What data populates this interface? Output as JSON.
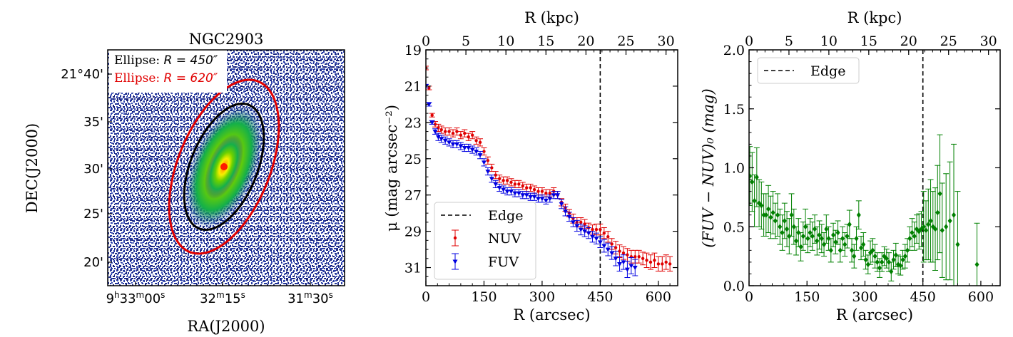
{
  "chart_data": [
    {
      "type": "image",
      "title": "NGC2903",
      "xlabel": "RA(J2000)",
      "ylabel": "DEC(J2000)",
      "xtick_labels": [
        {
          "h": "9",
          "m": "33",
          "s": "00"
        },
        {
          "m": "32",
          "s": "15"
        },
        {
          "m": "31",
          "s": "30"
        }
      ],
      "ytick_labels": [
        "21°40'",
        "35'",
        "30'",
        "25'",
        "20'"
      ],
      "legend": [
        {
          "label": "Ellipse: ",
          "math": "R = 450″",
          "color": "#000000"
        },
        {
          "label": "Ellipse: ",
          "math": "R = 620″",
          "color": "#e00000"
        }
      ],
      "ellipses": [
        {
          "name": "R = 450″",
          "semi_major_arcsec": 450,
          "color": "#000000"
        },
        {
          "name": "R = 620″",
          "semi_major_arcsec": 620,
          "color": "#e00000"
        }
      ],
      "position_angle_deg": 22,
      "inclination_axis_ratio": 0.5
    },
    {
      "type": "errorbar",
      "xlabel": "R (arcsec)",
      "top_xlabel": "R (kpc)",
      "ylabel": "μ (mag arcsec⁻²)",
      "xlim": [
        0,
        650
      ],
      "ylim": [
        32,
        19
      ],
      "xticks": [
        0,
        150,
        300,
        450,
        600
      ],
      "yticks": [
        19,
        21,
        23,
        25,
        27,
        29,
        31
      ],
      "top_xticks_kpc": [
        0,
        5,
        10,
        15,
        20,
        25,
        30
      ],
      "kpc_per_arcsec": 0.0484,
      "edge_arcsec": 450,
      "legend_entries": [
        "Edge",
        "NUV",
        "FUV"
      ],
      "series": [
        {
          "name": "NUV",
          "color": "#e00000",
          "x": [
            0,
            8,
            16,
            24,
            32,
            40,
            50,
            60,
            70,
            80,
            90,
            100,
            110,
            120,
            130,
            140,
            150,
            160,
            170,
            180,
            190,
            200,
            210,
            220,
            230,
            240,
            250,
            260,
            270,
            280,
            290,
            300,
            310,
            320,
            330,
            340,
            350,
            360,
            370,
            380,
            390,
            400,
            410,
            420,
            430,
            440,
            450,
            460,
            470,
            480,
            490,
            500,
            510,
            520,
            530,
            540,
            550,
            560,
            570,
            580,
            590,
            600,
            610,
            620,
            630
          ],
          "y": [
            20.0,
            21.1,
            22.6,
            23.1,
            23.3,
            23.4,
            23.5,
            23.5,
            23.6,
            23.5,
            23.7,
            23.6,
            23.8,
            23.7,
            24.0,
            24.1,
            24.6,
            25.1,
            25.5,
            25.9,
            26.1,
            26.2,
            26.2,
            26.3,
            26.4,
            26.4,
            26.5,
            26.6,
            26.6,
            26.7,
            26.8,
            26.8,
            26.9,
            26.9,
            26.8,
            27.0,
            27.4,
            27.7,
            28.0,
            28.3,
            28.5,
            28.5,
            28.6,
            28.8,
            28.9,
            28.9,
            28.9,
            29.1,
            29.3,
            29.7,
            29.9,
            30.1,
            30.2,
            30.3,
            30.4,
            30.4,
            30.4,
            30.5,
            30.6,
            30.7,
            30.6,
            30.8,
            30.8,
            30.7,
            30.8
          ],
          "yerr": [
            0.1,
            0.1,
            0.1,
            0.15,
            0.2,
            0.2,
            0.2,
            0.2,
            0.2,
            0.2,
            0.2,
            0.2,
            0.2,
            0.2,
            0.2,
            0.2,
            0.2,
            0.2,
            0.2,
            0.2,
            0.2,
            0.2,
            0.2,
            0.2,
            0.2,
            0.2,
            0.2,
            0.2,
            0.2,
            0.2,
            0.2,
            0.2,
            0.2,
            0.2,
            0.2,
            0.2,
            0.2,
            0.2,
            0.2,
            0.25,
            0.25,
            0.25,
            0.25,
            0.25,
            0.25,
            0.3,
            0.3,
            0.3,
            0.3,
            0.3,
            0.35,
            0.35,
            0.35,
            0.35,
            0.35,
            0.35,
            0.35,
            0.35,
            0.4,
            0.4,
            0.4,
            0.4,
            0.4,
            0.4,
            0.4
          ]
        },
        {
          "name": "FUV",
          "color": "#0000e0",
          "x": [
            0,
            8,
            16,
            24,
            32,
            40,
            50,
            60,
            70,
            80,
            90,
            100,
            110,
            120,
            130,
            140,
            150,
            160,
            170,
            180,
            190,
            200,
            210,
            220,
            230,
            240,
            250,
            260,
            270,
            280,
            290,
            300,
            310,
            320,
            330,
            340,
            350,
            360,
            370,
            380,
            390,
            400,
            410,
            420,
            430,
            440,
            450,
            460,
            470,
            480,
            490,
            500,
            510,
            520,
            530,
            540
          ],
          "y": [
            21.0,
            22.0,
            23.0,
            23.5,
            23.8,
            23.9,
            24.0,
            24.1,
            24.2,
            24.2,
            24.3,
            24.4,
            24.4,
            24.5,
            24.6,
            24.8,
            25.2,
            25.7,
            26.1,
            26.4,
            26.6,
            26.7,
            26.8,
            26.8,
            26.9,
            26.9,
            27.0,
            27.0,
            27.1,
            27.1,
            27.2,
            27.2,
            27.3,
            27.2,
            27.0,
            27.0,
            27.5,
            27.9,
            28.2,
            28.5,
            28.7,
            28.9,
            29.0,
            29.1,
            29.3,
            29.4,
            29.6,
            29.8,
            30.0,
            30.2,
            30.5,
            30.8,
            30.7,
            31.1,
            30.9,
            31.0
          ],
          "yerr": [
            0.1,
            0.1,
            0.1,
            0.15,
            0.2,
            0.2,
            0.2,
            0.2,
            0.2,
            0.2,
            0.2,
            0.2,
            0.2,
            0.2,
            0.2,
            0.2,
            0.2,
            0.2,
            0.2,
            0.2,
            0.2,
            0.2,
            0.2,
            0.2,
            0.2,
            0.2,
            0.2,
            0.2,
            0.2,
            0.2,
            0.2,
            0.2,
            0.2,
            0.2,
            0.2,
            0.2,
            0.25,
            0.25,
            0.25,
            0.25,
            0.3,
            0.3,
            0.3,
            0.3,
            0.3,
            0.3,
            0.3,
            0.35,
            0.35,
            0.35,
            0.4,
            0.4,
            0.4,
            0.45,
            0.45,
            0.45
          ]
        }
      ]
    },
    {
      "type": "errorbar",
      "xlabel": "R (arcsec)",
      "top_xlabel": "R (kpc)",
      "ylabel": "(FUV − NUV)₀ (mag)",
      "xlim": [
        0,
        650
      ],
      "ylim": [
        0,
        2
      ],
      "xticks": [
        0,
        150,
        300,
        450,
        600
      ],
      "yticks": [
        0.0,
        0.5,
        1.0,
        1.5,
        2.0
      ],
      "ytick_labels": [
        "0.0",
        "0.5",
        "1.0",
        "1.5",
        "2.0"
      ],
      "top_xticks_kpc": [
        0,
        5,
        10,
        15,
        20,
        25,
        30
      ],
      "kpc_per_arcsec": 0.0484,
      "edge_arcsec": 450,
      "legend_entries": [
        "Edge"
      ],
      "series": [
        {
          "name": "FUV-NUV",
          "color": "#008000",
          "x": [
            2,
            8,
            14,
            20,
            26,
            32,
            38,
            44,
            50,
            56,
            62,
            68,
            74,
            80,
            86,
            92,
            98,
            104,
            110,
            116,
            122,
            128,
            134,
            140,
            146,
            152,
            158,
            164,
            170,
            176,
            182,
            188,
            194,
            200,
            206,
            212,
            218,
            224,
            230,
            236,
            242,
            248,
            254,
            260,
            266,
            272,
            278,
            284,
            290,
            296,
            302,
            308,
            314,
            320,
            326,
            332,
            338,
            344,
            350,
            356,
            362,
            368,
            374,
            380,
            386,
            392,
            398,
            404,
            410,
            416,
            422,
            428,
            434,
            440,
            446,
            452,
            458,
            464,
            470,
            476,
            482,
            488,
            494,
            500,
            510,
            520,
            530,
            540,
            590
          ],
          "y": [
            0.93,
            0.88,
            0.72,
            0.92,
            0.7,
            0.68,
            0.6,
            0.6,
            0.65,
            0.58,
            0.62,
            0.55,
            0.6,
            0.5,
            0.45,
            0.55,
            0.48,
            0.42,
            0.6,
            0.5,
            0.38,
            0.45,
            0.33,
            0.42,
            0.5,
            0.4,
            0.45,
            0.42,
            0.48,
            0.38,
            0.43,
            0.4,
            0.35,
            0.48,
            0.4,
            0.3,
            0.43,
            0.37,
            0.45,
            0.3,
            0.4,
            0.35,
            0.42,
            0.52,
            0.3,
            0.25,
            0.4,
            0.6,
            0.32,
            0.35,
            0.22,
            0.18,
            0.28,
            0.3,
            0.25,
            0.2,
            0.15,
            0.2,
            0.25,
            0.23,
            0.2,
            0.12,
            0.22,
            0.26,
            0.18,
            0.17,
            0.22,
            0.25,
            0.3,
            0.4,
            0.45,
            0.42,
            0.48,
            0.46,
            0.48,
            0.5,
            0.47,
            0.52,
            0.55,
            0.5,
            0.48,
            0.62,
            0.78,
            0.47,
            0.5,
            0.55,
            0.6,
            0.35,
            0.18
          ],
          "yerr": [
            0.25,
            0.25,
            0.22,
            0.25,
            0.2,
            0.2,
            0.18,
            0.18,
            0.2,
            0.18,
            0.18,
            0.15,
            0.18,
            0.15,
            0.15,
            0.15,
            0.15,
            0.15,
            0.18,
            0.15,
            0.12,
            0.12,
            0.12,
            0.12,
            0.15,
            0.12,
            0.12,
            0.12,
            0.12,
            0.12,
            0.12,
            0.12,
            0.1,
            0.12,
            0.1,
            0.1,
            0.1,
            0.1,
            0.1,
            0.1,
            0.1,
            0.1,
            0.1,
            0.12,
            0.1,
            0.1,
            0.1,
            0.12,
            0.1,
            0.1,
            0.08,
            0.08,
            0.1,
            0.1,
            0.1,
            0.08,
            0.08,
            0.08,
            0.08,
            0.08,
            0.08,
            0.08,
            0.08,
            0.1,
            0.08,
            0.08,
            0.08,
            0.1,
            0.1,
            0.1,
            0.12,
            0.12,
            0.12,
            0.15,
            0.15,
            0.3,
            0.25,
            0.3,
            0.35,
            0.3,
            0.35,
            0.4,
            0.5,
            0.4,
            0.45,
            0.5,
            0.6,
            0.45,
            0.35
          ]
        }
      ]
    }
  ]
}
